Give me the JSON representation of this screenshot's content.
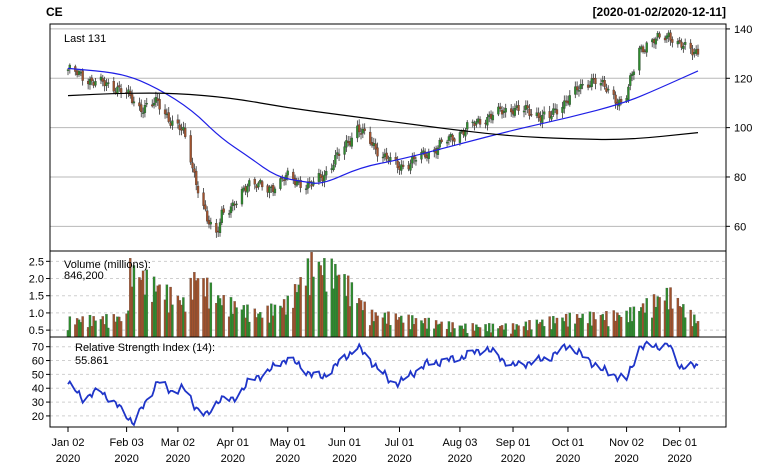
{
  "header": {
    "symbol": "CE",
    "date_range": "[2020-01-02/2020-12-11]"
  },
  "colors": {
    "up": "#2e8b2e",
    "down": "#a0522d",
    "ma_fast": "#1f1fe6",
    "ma_slow": "#000000",
    "rsi": "#1f35c8",
    "last_label": "#22aa22",
    "volume_label": "#22aa22"
  },
  "chart_data": [
    {
      "type": "candlestick",
      "title": "CE",
      "subtitle": "[2020-01-02/2020-12-11]",
      "last_label": "Last 131",
      "ylim": [
        50,
        142
      ],
      "yticks": [
        60,
        80,
        100,
        120,
        140
      ],
      "grid": true,
      "x_tick_labels": [
        {
          "date": "Jan 02",
          "year": "2020"
        },
        {
          "date": "Feb 03",
          "year": "2020"
        },
        {
          "date": "Mar 02",
          "year": "2020"
        },
        {
          "date": "Apr 01",
          "year": "2020"
        },
        {
          "date": "May 01",
          "year": "2020"
        },
        {
          "date": "Jun 01",
          "year": "2020"
        },
        {
          "date": "Jul 01",
          "year": "2020"
        },
        {
          "date": "Aug 03",
          "year": "2020"
        },
        {
          "date": "Sep 01",
          "year": "2020"
        },
        {
          "date": "Oct 01",
          "year": "2020"
        },
        {
          "date": "Nov 02",
          "year": "2020"
        },
        {
          "date": "Dec 01",
          "year": "2020"
        }
      ],
      "close_series": [
        {
          "date": "2020-01-02",
          "close": 123.5
        },
        {
          "date": "2020-01-15",
          "close": 119.0
        },
        {
          "date": "2020-01-30",
          "close": 116.0
        },
        {
          "date": "2020-02-03",
          "close": 113.5
        },
        {
          "date": "2020-02-10",
          "close": 108.0
        },
        {
          "date": "2020-02-20",
          "close": 110.0
        },
        {
          "date": "2020-02-28",
          "close": 102.0
        },
        {
          "date": "2020-03-05",
          "close": 98.0
        },
        {
          "date": "2020-03-09",
          "close": 88.0
        },
        {
          "date": "2020-03-12",
          "close": 78.0
        },
        {
          "date": "2020-03-18",
          "close": 62.0
        },
        {
          "date": "2020-03-23",
          "close": 57.0
        },
        {
          "date": "2020-03-26",
          "close": 66.0
        },
        {
          "date": "2020-04-01",
          "close": 67.0
        },
        {
          "date": "2020-04-09",
          "close": 78.0
        },
        {
          "date": "2020-04-20",
          "close": 75.0
        },
        {
          "date": "2020-05-01",
          "close": 80.0
        },
        {
          "date": "2020-05-13",
          "close": 76.0
        },
        {
          "date": "2020-05-22",
          "close": 82.0
        },
        {
          "date": "2020-06-01",
          "close": 92.0
        },
        {
          "date": "2020-06-08",
          "close": 100.0
        },
        {
          "date": "2020-06-15",
          "close": 94.0
        },
        {
          "date": "2020-06-26",
          "close": 86.0
        },
        {
          "date": "2020-07-01",
          "close": 84.0
        },
        {
          "date": "2020-07-15",
          "close": 89.0
        },
        {
          "date": "2020-08-03",
          "close": 98.0
        },
        {
          "date": "2020-08-17",
          "close": 104.0
        },
        {
          "date": "2020-09-01",
          "close": 108.0
        },
        {
          "date": "2020-09-21",
          "close": 104.0
        },
        {
          "date": "2020-10-01",
          "close": 112.0
        },
        {
          "date": "2020-10-15",
          "close": 120.0
        },
        {
          "date": "2020-10-30",
          "close": 110.0
        },
        {
          "date": "2020-11-02",
          "close": 113.0
        },
        {
          "date": "2020-11-09",
          "close": 132.0
        },
        {
          "date": "2020-11-25",
          "close": 138.0
        },
        {
          "date": "2020-12-01",
          "close": 133.0
        },
        {
          "date": "2020-12-11",
          "close": 131.0
        }
      ],
      "series": [
        {
          "name": "",
          "points": [
            {
              "date": "2020-01-02",
              "value": 124.0
            },
            {
              "date": "2020-02-01",
              "value": 122.0
            },
            {
              "date": "2020-02-20",
              "value": 116.0
            },
            {
              "date": "2020-03-10",
              "value": 107.0
            },
            {
              "date": "2020-03-25",
              "value": 96.0
            },
            {
              "date": "2020-04-10",
              "value": 88.0
            },
            {
              "date": "2020-04-25",
              "value": 80.0
            },
            {
              "date": "2020-05-10",
              "value": 78.0
            },
            {
              "date": "2020-05-20",
              "value": 77.0
            },
            {
              "date": "2020-06-10",
              "value": 84.0
            },
            {
              "date": "2020-07-01",
              "value": 87.0
            },
            {
              "date": "2020-08-01",
              "value": 93.0
            },
            {
              "date": "2020-09-01",
              "value": 99.0
            },
            {
              "date": "2020-10-01",
              "value": 104.0
            },
            {
              "date": "2020-11-01",
              "value": 110.0
            },
            {
              "date": "2020-11-20",
              "value": 116.0
            },
            {
              "date": "2020-12-11",
              "value": 123.0
            }
          ]
        },
        {
          "name": "",
          "points": [
            {
              "date": "2020-01-02",
              "value": 113.0
            },
            {
              "date": "2020-02-01",
              "value": 114.0
            },
            {
              "date": "2020-03-01",
              "value": 114.0
            },
            {
              "date": "2020-04-01",
              "value": 112.0
            },
            {
              "date": "2020-05-01",
              "value": 108.0
            },
            {
              "date": "2020-06-01",
              "value": 105.0
            },
            {
              "date": "2020-07-01",
              "value": 102.0
            },
            {
              "date": "2020-08-01",
              "value": 99.0
            },
            {
              "date": "2020-09-01",
              "value": 96.5
            },
            {
              "date": "2020-10-01",
              "value": 95.5
            },
            {
              "date": "2020-11-02",
              "value": 95.0
            },
            {
              "date": "2020-12-11",
              "value": 98.0
            }
          ]
        }
      ]
    },
    {
      "type": "bar",
      "title": "Volume (millions):",
      "last_value_label": "846,200",
      "ylim": [
        0.3,
        2.8
      ],
      "yticks": [
        0.5,
        1.0,
        1.5,
        2.0,
        2.5
      ],
      "ytick_labels": [
        "0.5",
        "1.0",
        "1.5",
        "2.0",
        "2.5"
      ],
      "grid": true,
      "volume_points": [
        {
          "date": "2020-01-02",
          "value": 0.9
        },
        {
          "date": "2020-02-03",
          "value": 1.0
        },
        {
          "date": "2020-02-05",
          "value": 2.6
        },
        {
          "date": "2020-03-05",
          "value": 1.5
        },
        {
          "date": "2020-03-12",
          "value": 2.4
        },
        {
          "date": "2020-03-25",
          "value": 1.6
        },
        {
          "date": "2020-04-15",
          "value": 1.1
        },
        {
          "date": "2020-05-01",
          "value": 1.5
        },
        {
          "date": "2020-05-14",
          "value": 2.8
        },
        {
          "date": "2020-05-29",
          "value": 2.5
        },
        {
          "date": "2020-06-15",
          "value": 1.1
        },
        {
          "date": "2020-07-01",
          "value": 1.0
        },
        {
          "date": "2020-08-03",
          "value": 0.7
        },
        {
          "date": "2020-09-01",
          "value": 0.7
        },
        {
          "date": "2020-10-01",
          "value": 1.0
        },
        {
          "date": "2020-11-02",
          "value": 1.1
        },
        {
          "date": "2020-11-25",
          "value": 1.8
        },
        {
          "date": "2020-12-11",
          "value": 0.85
        }
      ]
    },
    {
      "type": "line",
      "title": "Relative Strength Index (14):",
      "last_value_label": "55.861",
      "ylim": [
        12,
        77
      ],
      "yticks": [
        20,
        30,
        40,
        50,
        60,
        70
      ],
      "grid": true,
      "points": [
        {
          "date": "2020-01-02",
          "value": 43
        },
        {
          "date": "2020-01-10",
          "value": 33
        },
        {
          "date": "2020-01-20",
          "value": 38
        },
        {
          "date": "2020-01-30",
          "value": 26
        },
        {
          "date": "2020-02-07",
          "value": 15
        },
        {
          "date": "2020-02-20",
          "value": 45
        },
        {
          "date": "2020-02-27",
          "value": 38
        },
        {
          "date": "2020-03-05",
          "value": 40
        },
        {
          "date": "2020-03-12",
          "value": 26
        },
        {
          "date": "2020-03-18",
          "value": 20
        },
        {
          "date": "2020-03-25",
          "value": 33
        },
        {
          "date": "2020-04-01",
          "value": 31
        },
        {
          "date": "2020-04-09",
          "value": 44
        },
        {
          "date": "2020-04-20",
          "value": 52
        },
        {
          "date": "2020-05-01",
          "value": 62
        },
        {
          "date": "2020-05-14",
          "value": 50
        },
        {
          "date": "2020-05-20",
          "value": 48
        },
        {
          "date": "2020-06-08",
          "value": 70
        },
        {
          "date": "2020-06-26",
          "value": 45
        },
        {
          "date": "2020-07-01",
          "value": 44
        },
        {
          "date": "2020-07-15",
          "value": 57
        },
        {
          "date": "2020-08-03",
          "value": 62
        },
        {
          "date": "2020-08-17",
          "value": 69
        },
        {
          "date": "2020-09-01",
          "value": 56
        },
        {
          "date": "2020-09-21",
          "value": 62
        },
        {
          "date": "2020-10-01",
          "value": 71
        },
        {
          "date": "2020-10-20",
          "value": 53
        },
        {
          "date": "2020-11-02",
          "value": 46
        },
        {
          "date": "2020-11-09",
          "value": 70
        },
        {
          "date": "2020-11-25",
          "value": 71
        },
        {
          "date": "2020-12-01",
          "value": 56
        },
        {
          "date": "2020-12-11",
          "value": 55.861
        }
      ]
    }
  ]
}
